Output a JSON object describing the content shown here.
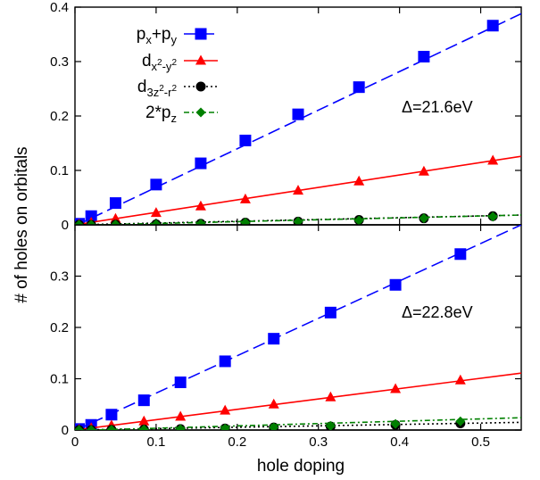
{
  "chart_data": [
    {
      "type": "line",
      "panel": "top",
      "xlim": [
        0,
        0.55
      ],
      "ylim": [
        0,
        0.4
      ],
      "y_ticks": [
        "0",
        "0.1",
        "0.2",
        "0.3",
        "0.4"
      ],
      "ylabel": "# of holes on orbitals",
      "annotation": "Δ=21.6eV",
      "legend_position": "top-left",
      "grid": false,
      "series": [
        {
          "name_parts": {
            "base": "p",
            "sub1": "x",
            "mid": "+p",
            "sub2": "y"
          },
          "color": "#0000ff",
          "marker": "square",
          "dash": "long-dash",
          "x": [
            0.005,
            0.02,
            0.05,
            0.1,
            0.155,
            0.21,
            0.275,
            0.35,
            0.43,
            0.515
          ],
          "y": [
            0.002,
            0.016,
            0.04,
            0.074,
            0.113,
            0.155,
            0.203,
            0.253,
            0.309,
            0.366
          ],
          "fit": [
            [
              0.0,
              -0.002
            ],
            [
              0.55,
              0.388
            ]
          ]
        },
        {
          "name_parts": {
            "base": "d",
            "sub": "x",
            "sub_sup1": "2",
            "sub_mid": "-y",
            "sub_sup2": "2"
          },
          "color": "#ff0000",
          "marker": "triangle",
          "dash": "solid",
          "x": [
            0.005,
            0.02,
            0.05,
            0.1,
            0.155,
            0.21,
            0.275,
            0.35,
            0.43,
            0.515
          ],
          "y": [
            0.001,
            0.004,
            0.011,
            0.022,
            0.034,
            0.047,
            0.063,
            0.08,
            0.098,
            0.118
          ],
          "fit": [
            [
              0.0,
              0.0
            ],
            [
              0.55,
              0.126
            ]
          ]
        },
        {
          "name_parts": {
            "base": "d",
            "sub": "3z",
            "sub_sup1": "2",
            "sub_mid": "-r",
            "sub_sup2": "2"
          },
          "color": "#000000",
          "marker": "circle",
          "dash": "dotted",
          "x": [
            0.005,
            0.02,
            0.05,
            0.1,
            0.155,
            0.21,
            0.275,
            0.35,
            0.43,
            0.515
          ],
          "y": [
            0.0,
            0.0,
            0.0005,
            0.001,
            0.002,
            0.004,
            0.006,
            0.009,
            0.012,
            0.016
          ],
          "fit": [
            [
              0.0,
              0.0
            ],
            [
              0.55,
              0.018
            ]
          ]
        },
        {
          "name_parts": {
            "base": "2*p",
            "sub": "z"
          },
          "color": "#008000",
          "marker": "diamond",
          "dash": "dash-dot",
          "x": [
            0.005,
            0.02,
            0.05,
            0.1,
            0.155,
            0.21,
            0.275,
            0.35,
            0.43,
            0.515
          ],
          "y": [
            0.0,
            0.0,
            0.0005,
            0.001,
            0.002,
            0.004,
            0.006,
            0.008,
            0.012,
            0.015
          ],
          "fit": [
            [
              0.0,
              -0.001
            ],
            [
              0.55,
              0.018
            ]
          ]
        }
      ]
    },
    {
      "type": "line",
      "panel": "bottom",
      "xlim": [
        0,
        0.55
      ],
      "ylim": [
        0,
        0.4
      ],
      "x_ticks": [
        "0",
        "0.1",
        "0.2",
        "0.3",
        "0.4",
        "0.5"
      ],
      "y_ticks": [
        "0",
        "0.1",
        "0.2",
        "0.3"
      ],
      "xlabel": "hole doping",
      "annotation": "Δ=22.8eV",
      "grid": false,
      "series": [
        {
          "color": "#0000ff",
          "marker": "square",
          "dash": "long-dash",
          "x": [
            0.005,
            0.02,
            0.045,
            0.085,
            0.13,
            0.185,
            0.245,
            0.315,
            0.395,
            0.475
          ],
          "y": [
            0.002,
            0.01,
            0.03,
            0.058,
            0.093,
            0.134,
            0.178,
            0.229,
            0.283,
            0.343
          ],
          "fit": [
            [
              0.0,
              -0.001
            ],
            [
              0.55,
              0.4
            ]
          ]
        },
        {
          "color": "#ff0000",
          "marker": "triangle",
          "dash": "solid",
          "x": [
            0.005,
            0.02,
            0.045,
            0.085,
            0.13,
            0.185,
            0.245,
            0.315,
            0.395,
            0.475
          ],
          "y": [
            0.001,
            0.004,
            0.009,
            0.017,
            0.026,
            0.038,
            0.05,
            0.064,
            0.08,
            0.097
          ],
          "fit": [
            [
              0.0,
              0.0
            ],
            [
              0.55,
              0.111
            ]
          ]
        },
        {
          "color": "#000000",
          "marker": "circle",
          "dash": "dotted",
          "x": [
            0.005,
            0.02,
            0.045,
            0.085,
            0.13,
            0.185,
            0.245,
            0.315,
            0.395,
            0.475
          ],
          "y": [
            0.0,
            0.0,
            0.0005,
            0.001,
            0.002,
            0.003,
            0.005,
            0.007,
            0.01,
            0.013
          ],
          "fit": [
            [
              0.0,
              0.0
            ],
            [
              0.55,
              0.015
            ]
          ]
        },
        {
          "color": "#008000",
          "marker": "diamond",
          "dash": "dash-dot",
          "x": [
            0.005,
            0.02,
            0.045,
            0.085,
            0.13,
            0.185,
            0.245,
            0.315,
            0.395,
            0.475
          ],
          "y": [
            0.0,
            0.0,
            0.0005,
            0.001,
            0.002,
            0.003,
            0.005,
            0.008,
            0.012,
            0.017
          ],
          "fit": [
            [
              0.0,
              -0.001
            ],
            [
              0.55,
              0.024
            ]
          ]
        }
      ]
    }
  ]
}
